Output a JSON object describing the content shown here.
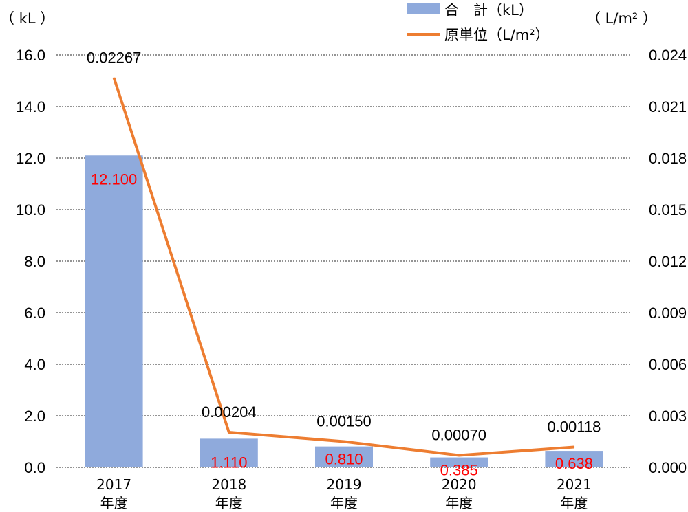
{
  "chart_data": {
    "type": "bar",
    "categories": [
      "2017\n年度",
      "2018\n年度",
      "2019\n年度",
      "2020\n年度",
      "2021\n年度"
    ],
    "series": [
      {
        "name": "合　計（kL）",
        "kind": "bar",
        "axis": "left",
        "values": [
          12.1,
          1.11,
          0.81,
          0.385,
          0.638
        ],
        "labels": [
          "12.100",
          "1.110",
          "0.810",
          "0.385",
          "0.638"
        ]
      },
      {
        "name": "原単位（L/m²）",
        "kind": "line",
        "axis": "right",
        "values": [
          0.02267,
          0.00204,
          0.0015,
          0.0007,
          0.00118
        ],
        "labels": [
          "0.02267",
          "0.00204",
          "0.00150",
          "0.00070",
          "0.00118"
        ]
      }
    ],
    "left_axis": {
      "unit": "（ kL ）",
      "ylim": [
        0,
        16
      ],
      "ticks": [
        "0.0",
        "2.0",
        "4.0",
        "6.0",
        "8.0",
        "10.0",
        "12.0",
        "14.0",
        "16.0"
      ]
    },
    "right_axis": {
      "unit": "（ L/m² ）",
      "ylim": [
        0,
        0.024
      ],
      "ticks": [
        "0.000",
        "0.003",
        "0.006",
        "0.009",
        "0.012",
        "0.015",
        "0.018",
        "0.021",
        "0.024"
      ]
    },
    "legend_position": "top-center",
    "grid": "horizontal-dotted",
    "colors": {
      "bar": "#8faadc",
      "line": "#ed7d31",
      "bar_label": "#ff0000",
      "grid": "#555555"
    }
  }
}
